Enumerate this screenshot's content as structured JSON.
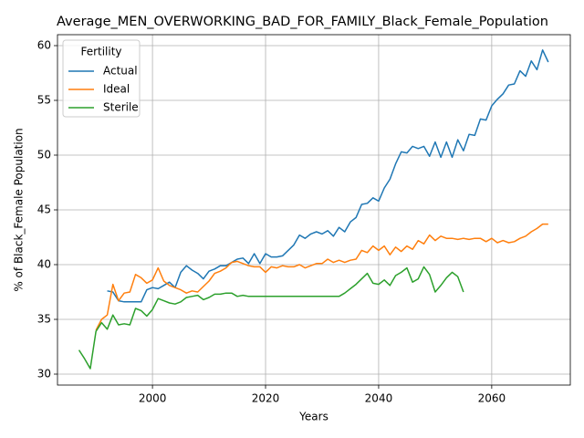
{
  "chart_data": {
    "type": "line",
    "title": "Average_MEN_OVERWORKING_BAD_FOR_FAMILY_Black_Female_Population",
    "xlabel": "Years",
    "ylabel": "% of Black_Female Population",
    "legend_title": "Fertility",
    "legend_loc": "upper left",
    "grid": true,
    "xlim": [
      1983.2,
      2073.9
    ],
    "ylim": [
      29,
      61
    ],
    "xticks": [
      2000,
      2020,
      2040,
      2060
    ],
    "yticks": [
      30,
      35,
      40,
      45,
      50,
      55,
      60
    ],
    "x": [
      1987,
      1988,
      1989,
      1990,
      1991,
      1992,
      1993,
      1994,
      1995,
      1996,
      1997,
      1998,
      1999,
      2000,
      2001,
      2002,
      2003,
      2004,
      2005,
      2006,
      2007,
      2008,
      2009,
      2010,
      2011,
      2012,
      2013,
      2014,
      2015,
      2016,
      2017,
      2018,
      2019,
      2020,
      2021,
      2022,
      2023,
      2024,
      2025,
      2026,
      2027,
      2028,
      2029,
      2030,
      2031,
      2032,
      2033,
      2034,
      2035,
      2036,
      2037,
      2038,
      2039,
      2040,
      2041,
      2042,
      2043,
      2044,
      2045,
      2046,
      2047,
      2048,
      2049,
      2050,
      2051,
      2052,
      2053,
      2054,
      2055,
      2056,
      2057,
      2058,
      2059,
      2060,
      2061,
      2062,
      2063,
      2064,
      2065,
      2066,
      2067,
      2068,
      2069,
      2070
    ],
    "series": [
      {
        "name": "Actual",
        "color": "#1f77b4",
        "values": [
          null,
          null,
          null,
          null,
          null,
          37.6,
          37.5,
          36.7,
          36.6,
          36.6,
          36.6,
          36.6,
          37.7,
          37.9,
          37.8,
          38.1,
          38.4,
          37.9,
          39.3,
          39.9,
          39.5,
          39.2,
          38.7,
          39.4,
          39.6,
          39.9,
          39.9,
          40.2,
          40.5,
          40.6,
          40.1,
          41.0,
          40.1,
          41.0,
          40.7,
          40.7,
          40.8,
          41.3,
          41.8,
          42.7,
          42.4,
          42.8,
          43.0,
          42.8,
          43.1,
          42.6,
          43.4,
          43.0,
          43.9,
          44.3,
          45.5,
          45.6,
          46.1,
          45.8,
          47.0,
          47.8,
          49.2,
          50.3,
          50.2,
          50.8,
          50.6,
          50.8,
          49.9,
          51.2,
          49.8,
          51.2,
          49.8,
          51.4,
          50.4,
          51.9,
          51.8,
          53.3,
          53.2,
          54.5,
          55.1,
          55.6,
          56.4,
          56.5,
          57.7,
          57.2,
          58.6,
          57.8,
          59.6,
          58.5
        ]
      },
      {
        "name": "Ideal",
        "color": "#ff7f0e",
        "values": [
          null,
          null,
          null,
          34.0,
          35.0,
          35.4,
          38.2,
          36.7,
          37.4,
          37.5,
          39.1,
          38.8,
          38.3,
          38.6,
          39.7,
          38.5,
          38.1,
          37.9,
          37.7,
          37.4,
          37.6,
          37.5,
          38.0,
          38.5,
          39.2,
          39.4,
          39.7,
          40.2,
          40.3,
          40.1,
          39.9,
          39.8,
          39.8,
          39.3,
          39.8,
          39.7,
          39.9,
          39.8,
          39.8,
          40.0,
          39.7,
          39.9,
          40.1,
          40.1,
          40.5,
          40.2,
          40.4,
          40.2,
          40.4,
          40.5,
          41.3,
          41.1,
          41.7,
          41.3,
          41.7,
          40.9,
          41.6,
          41.2,
          41.7,
          41.4,
          42.2,
          41.9,
          42.7,
          42.2,
          42.6,
          42.4,
          42.4,
          42.3,
          42.4,
          42.3,
          42.4,
          42.4,
          42.1,
          42.4,
          42.0,
          42.2,
          42.0,
          42.1,
          42.4,
          42.6,
          43.0,
          43.3,
          43.7,
          43.7
        ]
      },
      {
        "name": "Sterile",
        "color": "#2ca02c",
        "values": [
          32.2,
          31.4,
          30.5,
          33.9,
          34.7,
          34.1,
          35.4,
          34.5,
          34.6,
          34.5,
          36.0,
          35.8,
          35.3,
          35.9,
          36.9,
          36.7,
          36.5,
          36.4,
          36.6,
          37.0,
          37.1,
          37.2,
          36.8,
          37.0,
          37.3,
          37.3,
          37.4,
          37.4,
          37.1,
          37.2,
          37.1,
          37.1,
          37.1,
          37.1,
          37.1,
          37.1,
          37.1,
          37.1,
          37.1,
          37.1,
          37.1,
          37.1,
          37.1,
          37.1,
          37.1,
          37.1,
          37.1,
          37.4,
          37.8,
          38.2,
          38.7,
          39.2,
          38.3,
          38.2,
          38.6,
          38.1,
          39.0,
          39.3,
          39.7,
          38.4,
          38.7,
          39.8,
          39.1,
          37.5,
          38.1,
          38.8,
          39.3,
          38.9,
          37.5,
          null,
          null,
          null,
          null,
          null,
          null,
          null,
          null,
          null,
          null,
          null,
          null,
          null,
          null,
          null
        ]
      }
    ]
  }
}
